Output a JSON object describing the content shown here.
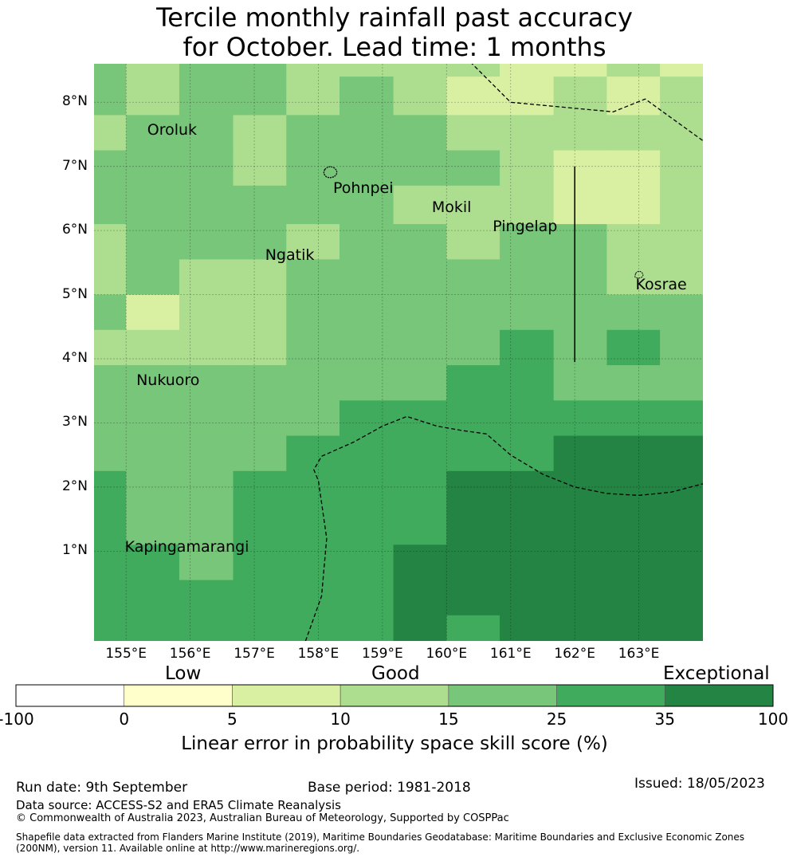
{
  "title": {
    "line1": "Tercile monthly rainfall past accuracy",
    "line2": "for October. Lead time: 1 months"
  },
  "map": {
    "extent": {
      "lon_min": 154.5,
      "lon_max": 164.0,
      "lat_min": -0.4,
      "lat_max": 8.6
    },
    "cell_lons": [
      154.5,
      155.0,
      155.83,
      156.67,
      157.5,
      158.33,
      159.17,
      160.0,
      160.83,
      161.67,
      162.5,
      163.33,
      164.0
    ],
    "cell_lats": [
      8.6,
      8.4,
      8.3,
      7.8,
      7.25,
      6.7,
      6.1,
      5.55,
      5.0,
      4.45,
      3.9,
      3.35,
      2.8,
      2.25,
      1.7,
      1.1,
      0.55,
      0.0,
      -0.4
    ],
    "grid_classes": [
      [
        4,
        3,
        4,
        4,
        3,
        3,
        3,
        3,
        2,
        2,
        3,
        2
      ],
      [
        4,
        3,
        4,
        4,
        3,
        4,
        3,
        2,
        2,
        3,
        2,
        3
      ],
      [
        4,
        3,
        4,
        4,
        3,
        4,
        3,
        2,
        2,
        3,
        2,
        3
      ],
      [
        3,
        4,
        4,
        3,
        4,
        4,
        4,
        3,
        3,
        3,
        3,
        3
      ],
      [
        4,
        4,
        4,
        3,
        4,
        4,
        4,
        4,
        3,
        2,
        2,
        3
      ],
      [
        4,
        4,
        4,
        4,
        4,
        4,
        3,
        3,
        3,
        2,
        2,
        3
      ],
      [
        3,
        4,
        4,
        4,
        3,
        4,
        4,
        3,
        4,
        4,
        3,
        3
      ],
      [
        3,
        4,
        3,
        3,
        4,
        4,
        4,
        4,
        4,
        4,
        3,
        3
      ],
      [
        4,
        2,
        3,
        3,
        4,
        4,
        4,
        4,
        4,
        4,
        4,
        4
      ],
      [
        3,
        3,
        3,
        3,
        4,
        4,
        4,
        4,
        5,
        4,
        5,
        4
      ],
      [
        4,
        4,
        4,
        4,
        4,
        4,
        4,
        5,
        5,
        4,
        4,
        4
      ],
      [
        4,
        4,
        4,
        4,
        4,
        5,
        5,
        5,
        5,
        5,
        5,
        5
      ],
      [
        4,
        4,
        4,
        4,
        5,
        5,
        5,
        5,
        5,
        6,
        6,
        6
      ],
      [
        5,
        4,
        4,
        5,
        5,
        5,
        5,
        6,
        6,
        6,
        6,
        6
      ],
      [
        5,
        4,
        4,
        5,
        5,
        5,
        5,
        6,
        6,
        6,
        6,
        6
      ],
      [
        5,
        5,
        4,
        5,
        5,
        5,
        6,
        6,
        6,
        6,
        6,
        6
      ],
      [
        5,
        5,
        5,
        5,
        5,
        5,
        6,
        6,
        6,
        6,
        6,
        6
      ],
      [
        5,
        5,
        5,
        5,
        5,
        5,
        6,
        5,
        6,
        6,
        6,
        6
      ]
    ],
    "lat_labels": [
      {
        "value": 8,
        "text": "8°N"
      },
      {
        "value": 7,
        "text": "7°N"
      },
      {
        "value": 6,
        "text": "6°N"
      },
      {
        "value": 5,
        "text": "5°N"
      },
      {
        "value": 4,
        "text": "4°N"
      },
      {
        "value": 3,
        "text": "3°N"
      },
      {
        "value": 2,
        "text": "2°N"
      },
      {
        "value": 1,
        "text": "1°N"
      }
    ],
    "lon_labels": [
      {
        "value": 155,
        "text": "155°E"
      },
      {
        "value": 156,
        "text": "156°E"
      },
      {
        "value": 157,
        "text": "157°E"
      },
      {
        "value": 158,
        "text": "158°E"
      },
      {
        "value": 159,
        "text": "159°E"
      },
      {
        "value": 160,
        "text": "160°E"
      },
      {
        "value": 161,
        "text": "161°E"
      },
      {
        "value": 162,
        "text": "162°E"
      },
      {
        "value": 163,
        "text": "163°E"
      }
    ],
    "places": [
      {
        "name": "Oroluk",
        "lon": 155.33,
        "lat": 7.55
      },
      {
        "name": "Pohnpei",
        "lon": 158.23,
        "lat": 6.65
      },
      {
        "name": "Mokil",
        "lon": 159.77,
        "lat": 6.35
      },
      {
        "name": "Pingelap",
        "lon": 160.72,
        "lat": 6.05
      },
      {
        "name": "Ngatik",
        "lon": 157.17,
        "lat": 5.6
      },
      {
        "name": "Kosrae",
        "lon": 162.95,
        "lat": 5.15
      },
      {
        "name": "Nukuoro",
        "lon": 155.16,
        "lat": 3.65
      },
      {
        "name": "Kapingamarangi",
        "lon": 154.98,
        "lat": 1.05
      }
    ],
    "eez_boundaries": [
      [
        [
          160.3,
          8.7
        ],
        [
          161.0,
          8.0
        ],
        [
          162.6,
          7.85
        ],
        [
          163.1,
          8.05
        ],
        [
          164.0,
          7.4
        ]
      ],
      [
        [
          157.8,
          -0.4
        ],
        [
          158.05,
          0.3
        ],
        [
          158.13,
          1.2
        ],
        [
          158.0,
          2.1
        ],
        [
          157.93,
          2.27
        ],
        [
          158.05,
          2.48
        ],
        [
          158.55,
          2.7
        ],
        [
          159.0,
          2.95
        ],
        [
          159.38,
          3.1
        ],
        [
          159.85,
          2.95
        ],
        [
          160.25,
          2.88
        ],
        [
          160.62,
          2.83
        ],
        [
          161.0,
          2.5
        ],
        [
          161.5,
          2.2
        ],
        [
          162.0,
          2.0
        ],
        [
          162.5,
          1.9
        ],
        [
          163.0,
          1.87
        ],
        [
          163.5,
          1.92
        ],
        [
          164.0,
          2.05
        ]
      ]
    ],
    "meridian_line": {
      "lon": 162.0,
      "lat_from": 3.95,
      "lat_to": 7.0
    }
  },
  "legend": {
    "colors": [
      "#ffffff",
      "#ffffcc",
      "#d9f0a3",
      "#addd8e",
      "#78c679",
      "#41ab5d",
      "#238443"
    ],
    "bounds": [
      -100,
      0,
      5,
      10,
      15,
      25,
      35,
      100
    ],
    "tick_labels": [
      "-100",
      "0",
      "5",
      "10",
      "15",
      "25",
      "35",
      "100"
    ],
    "categories": [
      "Low",
      "Good",
      "Exceptional"
    ],
    "label": "Linear error in probability space skill score (%)"
  },
  "footer": {
    "run_date": "Run date: 9th September",
    "base_period": "Base period: 1981-2018",
    "issued": "Issued: 18/05/2023",
    "data_source": "Data source: ACCESS-S2 and ERA5 Climate Reanalysis",
    "copyright": "© Commonwealth of Australia 2023, Australian Bureau of Meteorology, Supported by COSPPac",
    "shapefile_line1": "Shapefile data extracted from Flanders Marine Institute (2019), Maritime Boundaries Geodatabase: Maritime Boundaries and Exclusive Economic Zones",
    "shapefile_line2": "(200NM), version 11. Available online at http://www.marineregions.org/."
  }
}
